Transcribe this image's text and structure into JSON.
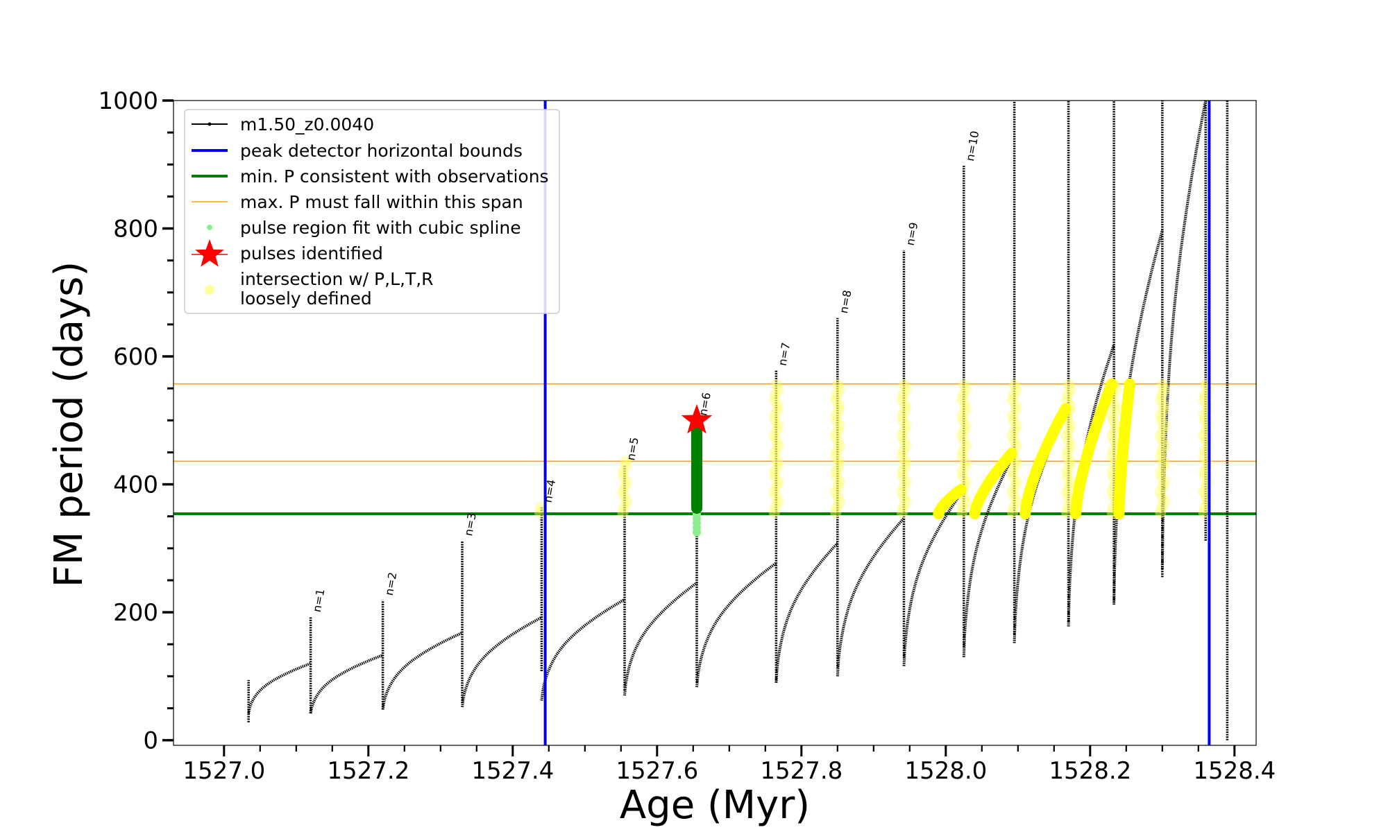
{
  "chart_data": {
    "type": "line",
    "xlabel": "Age (Myr)",
    "ylabel": "FM period (days)",
    "xlim": [
      1526.93,
      1528.43
    ],
    "ylim": [
      -8,
      1000
    ],
    "x_ticks": [
      1527.0,
      1527.2,
      1527.4,
      1527.6,
      1527.8,
      1528.0,
      1528.2,
      1528.4
    ],
    "x_tick_labels": [
      "1527.0",
      "1527.2",
      "1527.4",
      "1527.6",
      "1527.8",
      "1528.0",
      "1528.2",
      "1528.4"
    ],
    "y_ticks": [
      0,
      200,
      400,
      600,
      800,
      1000
    ],
    "y_tick_labels": [
      "0",
      "200",
      "400",
      "600",
      "800",
      "1000"
    ],
    "grid": false,
    "legend_position": "top-left",
    "legend": [
      {
        "label": "m1.50_z0.0040",
        "kind": "line-dots",
        "color": "#000000"
      },
      {
        "label": "peak detector horizontal bounds",
        "kind": "line",
        "color": "#0000ee"
      },
      {
        "label": "min. P consistent with observations",
        "kind": "line",
        "color": "#007f00"
      },
      {
        "label": "max. P must fall within this span",
        "kind": "thin-line",
        "color": "#ffa500"
      },
      {
        "label": "pulse region fit with cubic spline",
        "kind": "dot",
        "color": "#90ee90"
      },
      {
        "label": "pulses identified",
        "kind": "star",
        "color": "#ff0000"
      },
      {
        "label": "intersection w/ P,L,T,R\nloosely defined",
        "kind": "big-dot",
        "color": "#ffff99"
      }
    ],
    "vlines": [
      {
        "x": 1527.445,
        "color": "#0000ee"
      },
      {
        "x": 1528.365,
        "color": "#0000ee"
      }
    ],
    "hlines": [
      {
        "y": 354,
        "color": "#007f00",
        "width": 4
      },
      {
        "y": 436,
        "color": "#ffa500",
        "width": 1.6
      },
      {
        "y": 557,
        "color": "#ffa500",
        "width": 1.6
      }
    ],
    "series": [
      {
        "name": "m1.50_z0.0040",
        "color": "#000000",
        "cycles": [
          {
            "x0": 1527.034,
            "x_peak": 1527.12,
            "y_low": 42,
            "y_high": 120
          },
          {
            "x0": 1527.12,
            "x_peak": 1527.22,
            "y_low": 42,
            "y_high": 133
          },
          {
            "x0": 1527.22,
            "x_peak": 1527.33,
            "y_low": 48,
            "y_high": 168
          },
          {
            "x0": 1527.33,
            "x_peak": 1527.44,
            "y_low": 52,
            "y_high": 192
          },
          {
            "x0": 1527.44,
            "x_peak": 1527.555,
            "y_low": 62,
            "y_high": 220
          },
          {
            "x0": 1527.555,
            "x_peak": 1527.655,
            "y_low": 70,
            "y_high": 246
          },
          {
            "x0": 1527.655,
            "x_peak": 1527.765,
            "y_low": 83,
            "y_high": 277
          },
          {
            "x0": 1527.765,
            "x_peak": 1527.85,
            "y_low": 90,
            "y_high": 308
          },
          {
            "x0": 1527.85,
            "x_peak": 1527.942,
            "y_low": 100,
            "y_high": 347
          },
          {
            "x0": 1527.942,
            "x_peak": 1528.025,
            "y_low": 116,
            "y_high": 392
          },
          {
            "x0": 1528.025,
            "x_peak": 1528.095,
            "y_low": 130,
            "y_high": 448
          },
          {
            "x0": 1528.095,
            "x_peak": 1528.17,
            "y_low": 152,
            "y_high": 520
          },
          {
            "x0": 1528.17,
            "x_peak": 1528.233,
            "y_low": 178,
            "y_high": 618
          },
          {
            "x0": 1528.233,
            "x_peak": 1528.3,
            "y_low": 212,
            "y_high": 797
          },
          {
            "x0": 1528.3,
            "x_peak": 1528.36,
            "y_low": 268,
            "y_high": 1000
          }
        ],
        "spikes": [
          {
            "x": 1527.034,
            "low": 28,
            "high": 94
          },
          {
            "x": 1527.12,
            "low": 42,
            "high": 193
          },
          {
            "x": 1527.22,
            "low": 48,
            "high": 219
          },
          {
            "x": 1527.33,
            "low": 58,
            "high": 312
          },
          {
            "x": 1527.44,
            "low": 108,
            "high": 364
          },
          {
            "x": 1527.555,
            "low": 78,
            "high": 430
          },
          {
            "x": 1527.655,
            "low": 90,
            "high": 500
          },
          {
            "x": 1527.765,
            "low": 90,
            "high": 578
          },
          {
            "x": 1527.85,
            "low": 112,
            "high": 660
          },
          {
            "x": 1527.942,
            "low": 128,
            "high": 766
          },
          {
            "x": 1528.025,
            "low": 145,
            "high": 898
          },
          {
            "x": 1528.095,
            "low": 165,
            "high": 1000
          },
          {
            "x": 1528.17,
            "low": 185,
            "high": 1000
          },
          {
            "x": 1528.233,
            "low": 215,
            "high": 1000
          },
          {
            "x": 1528.3,
            "low": 255,
            "high": 1000
          },
          {
            "x": 1528.36,
            "low": 312,
            "high": 1000
          },
          {
            "x": 1528.39,
            "low": 0,
            "high": 1000
          }
        ]
      }
    ],
    "pulse_labels": [
      {
        "x": 1527.12,
        "y": 193,
        "text": "n=1"
      },
      {
        "x": 1527.22,
        "y": 219,
        "text": "n=2"
      },
      {
        "x": 1527.33,
        "y": 312,
        "text": "n=3"
      },
      {
        "x": 1527.44,
        "y": 364,
        "text": "n=4"
      },
      {
        "x": 1527.555,
        "y": 430,
        "text": "n=5"
      },
      {
        "x": 1527.655,
        "y": 500,
        "text": "n=6"
      },
      {
        "x": 1527.765,
        "y": 578,
        "text": "n=7"
      },
      {
        "x": 1527.85,
        "y": 660,
        "text": "n=8"
      },
      {
        "x": 1527.942,
        "y": 766,
        "text": "n=9"
      },
      {
        "x": 1528.025,
        "y": 898,
        "text": "n=10"
      }
    ],
    "spline_fit": {
      "x": 1527.655,
      "y_from": 325,
      "y_to": 500,
      "color": "#90ee90"
    },
    "pulses_identified": [
      {
        "x": 1527.655,
        "y": 500,
        "color": "#ff0000"
      }
    ],
    "green_marker_column": {
      "x": 1527.655,
      "y_from": 354,
      "y_to": 500,
      "color": "#007f00"
    },
    "intersection_columns": [
      {
        "x": 1527.44,
        "y_from": 356,
        "y_to": 370
      },
      {
        "x": 1527.555,
        "y_from": 356,
        "y_to": 436
      },
      {
        "x": 1527.765,
        "y_from": 356,
        "y_to": 557
      },
      {
        "x": 1527.85,
        "y_from": 356,
        "y_to": 557
      },
      {
        "x": 1527.942,
        "y_from": 356,
        "y_to": 557
      },
      {
        "x": 1528.025,
        "y_from": 356,
        "y_to": 557
      },
      {
        "x": 1528.095,
        "y_from": 356,
        "y_to": 557
      },
      {
        "x": 1528.17,
        "y_from": 356,
        "y_to": 557
      },
      {
        "x": 1528.233,
        "y_from": 356,
        "y_to": 557
      },
      {
        "x": 1528.3,
        "y_from": 356,
        "y_to": 557
      },
      {
        "x": 1528.36,
        "y_from": 356,
        "y_to": 557
      }
    ],
    "intersection_arcs": [
      {
        "x_from": 1527.99,
        "x_to": 1528.021,
        "y_from": 354,
        "y_to": 392
      },
      {
        "x_from": 1528.04,
        "x_to": 1528.091,
        "y_from": 354,
        "y_to": 448
      },
      {
        "x_from": 1528.11,
        "x_to": 1528.166,
        "y_from": 354,
        "y_to": 518
      },
      {
        "x_from": 1528.18,
        "x_to": 1528.23,
        "y_from": 354,
        "y_to": 557
      },
      {
        "x_from": 1528.24,
        "x_to": 1528.255,
        "y_from": 354,
        "y_to": 557
      }
    ]
  }
}
